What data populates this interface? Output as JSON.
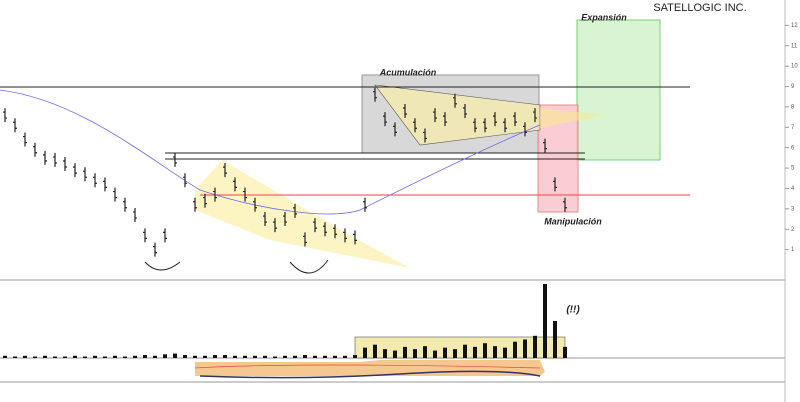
{
  "chart_data": [
    {
      "type": "bar-price",
      "title": "SATELLOGIC INC.",
      "annotations": [
        "Expansión",
        "Acumulación",
        "Manipulación"
      ],
      "color": "#222222",
      "ylim": [
        0,
        13
      ],
      "yticks": [
        1,
        2,
        3,
        4,
        5,
        6,
        7,
        8,
        9,
        10,
        11,
        12
      ],
      "values": [
        7.6,
        7.1,
        6.4,
        5.9,
        5.5,
        5.4,
        5.2,
        4.9,
        4.7,
        4.4,
        4.2,
        3.7,
        3.2,
        2.7,
        1.7,
        1.0,
        1.7,
        5.4,
        4.4,
        3.2,
        3.4,
        3.7,
        4.9,
        4.2,
        3.7,
        3.2,
        2.5,
        2.2,
        2.5,
        2.9,
        1.5,
        2.2,
        2.0,
        1.9,
        1.7,
        1.6,
        3.2,
        8.6,
        7.4,
        6.9,
        7.8,
        7.1,
        6.6,
        7.6,
        7.4,
        8.3,
        7.8,
        7.1,
        7.1,
        7.4,
        7.1,
        7.4,
        6.9,
        7.6,
        6.1,
        4.2,
        3.2
      ]
    },
    {
      "type": "bar",
      "annotation": "(!!)",
      "color": "#111111",
      "ylim": [
        0,
        100
      ],
      "values": [
        3,
        2,
        3,
        2,
        3,
        2,
        2,
        3,
        2,
        3,
        2,
        3,
        2,
        3,
        4,
        3,
        5,
        6,
        4,
        3,
        3,
        4,
        4,
        3,
        3,
        3,
        3,
        2,
        3,
        3,
        4,
        3,
        3,
        3,
        3,
        4,
        14,
        18,
        12,
        10,
        15,
        12,
        16,
        10,
        14,
        12,
        18,
        15,
        20,
        16,
        14,
        22,
        25,
        30,
        100,
        50,
        15
      ]
    }
  ]
}
